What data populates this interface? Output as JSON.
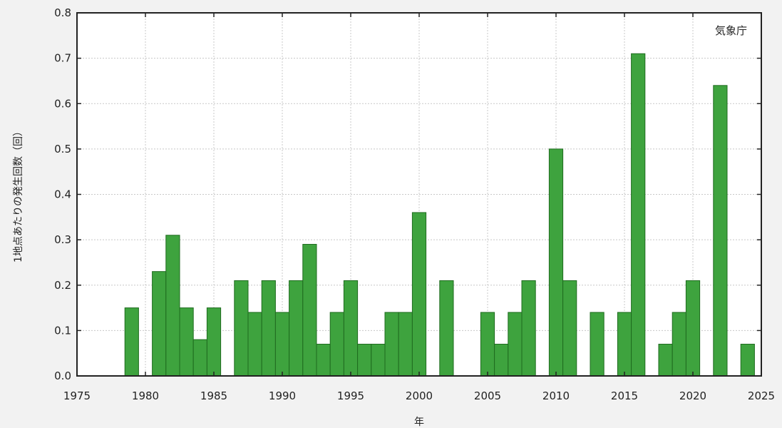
{
  "chart_data": {
    "type": "bar",
    "title": "",
    "credit": "気象庁",
    "xlabel": "年",
    "ylabel": "1地点あたりの発生回数（回）",
    "xlim": [
      1975,
      2025
    ],
    "ylim": [
      0,
      0.8
    ],
    "grid": true,
    "x_ticks": [
      1975,
      1980,
      1985,
      1990,
      1995,
      2000,
      2005,
      2010,
      2015,
      2020,
      2025
    ],
    "y_ticks": [
      "0.0",
      "0.1",
      "0.2",
      "0.3",
      "0.4",
      "0.5",
      "0.6",
      "0.7",
      "0.8"
    ],
    "bar_color": "#3ea33e",
    "bar_edge_color": "#1f6b1f",
    "x": [
      1979,
      1981,
      1982,
      1983,
      1984,
      1985,
      1987,
      1988,
      1989,
      1990,
      1991,
      1992,
      1993,
      1994,
      1995,
      1996,
      1997,
      1998,
      1999,
      2000,
      2002,
      2005,
      2006,
      2007,
      2008,
      2010,
      2011,
      2013,
      2015,
      2016,
      2018,
      2019,
      2020,
      2022,
      2024
    ],
    "values": [
      0.15,
      0.23,
      0.31,
      0.15,
      0.08,
      0.15,
      0.21,
      0.14,
      0.21,
      0.14,
      0.21,
      0.29,
      0.07,
      0.14,
      0.21,
      0.07,
      0.07,
      0.14,
      0.14,
      0.36,
      0.21,
      0.14,
      0.07,
      0.14,
      0.21,
      0.5,
      0.21,
      0.14,
      0.14,
      0.71,
      0.07,
      0.14,
      0.21,
      0.64,
      0.07
    ]
  }
}
